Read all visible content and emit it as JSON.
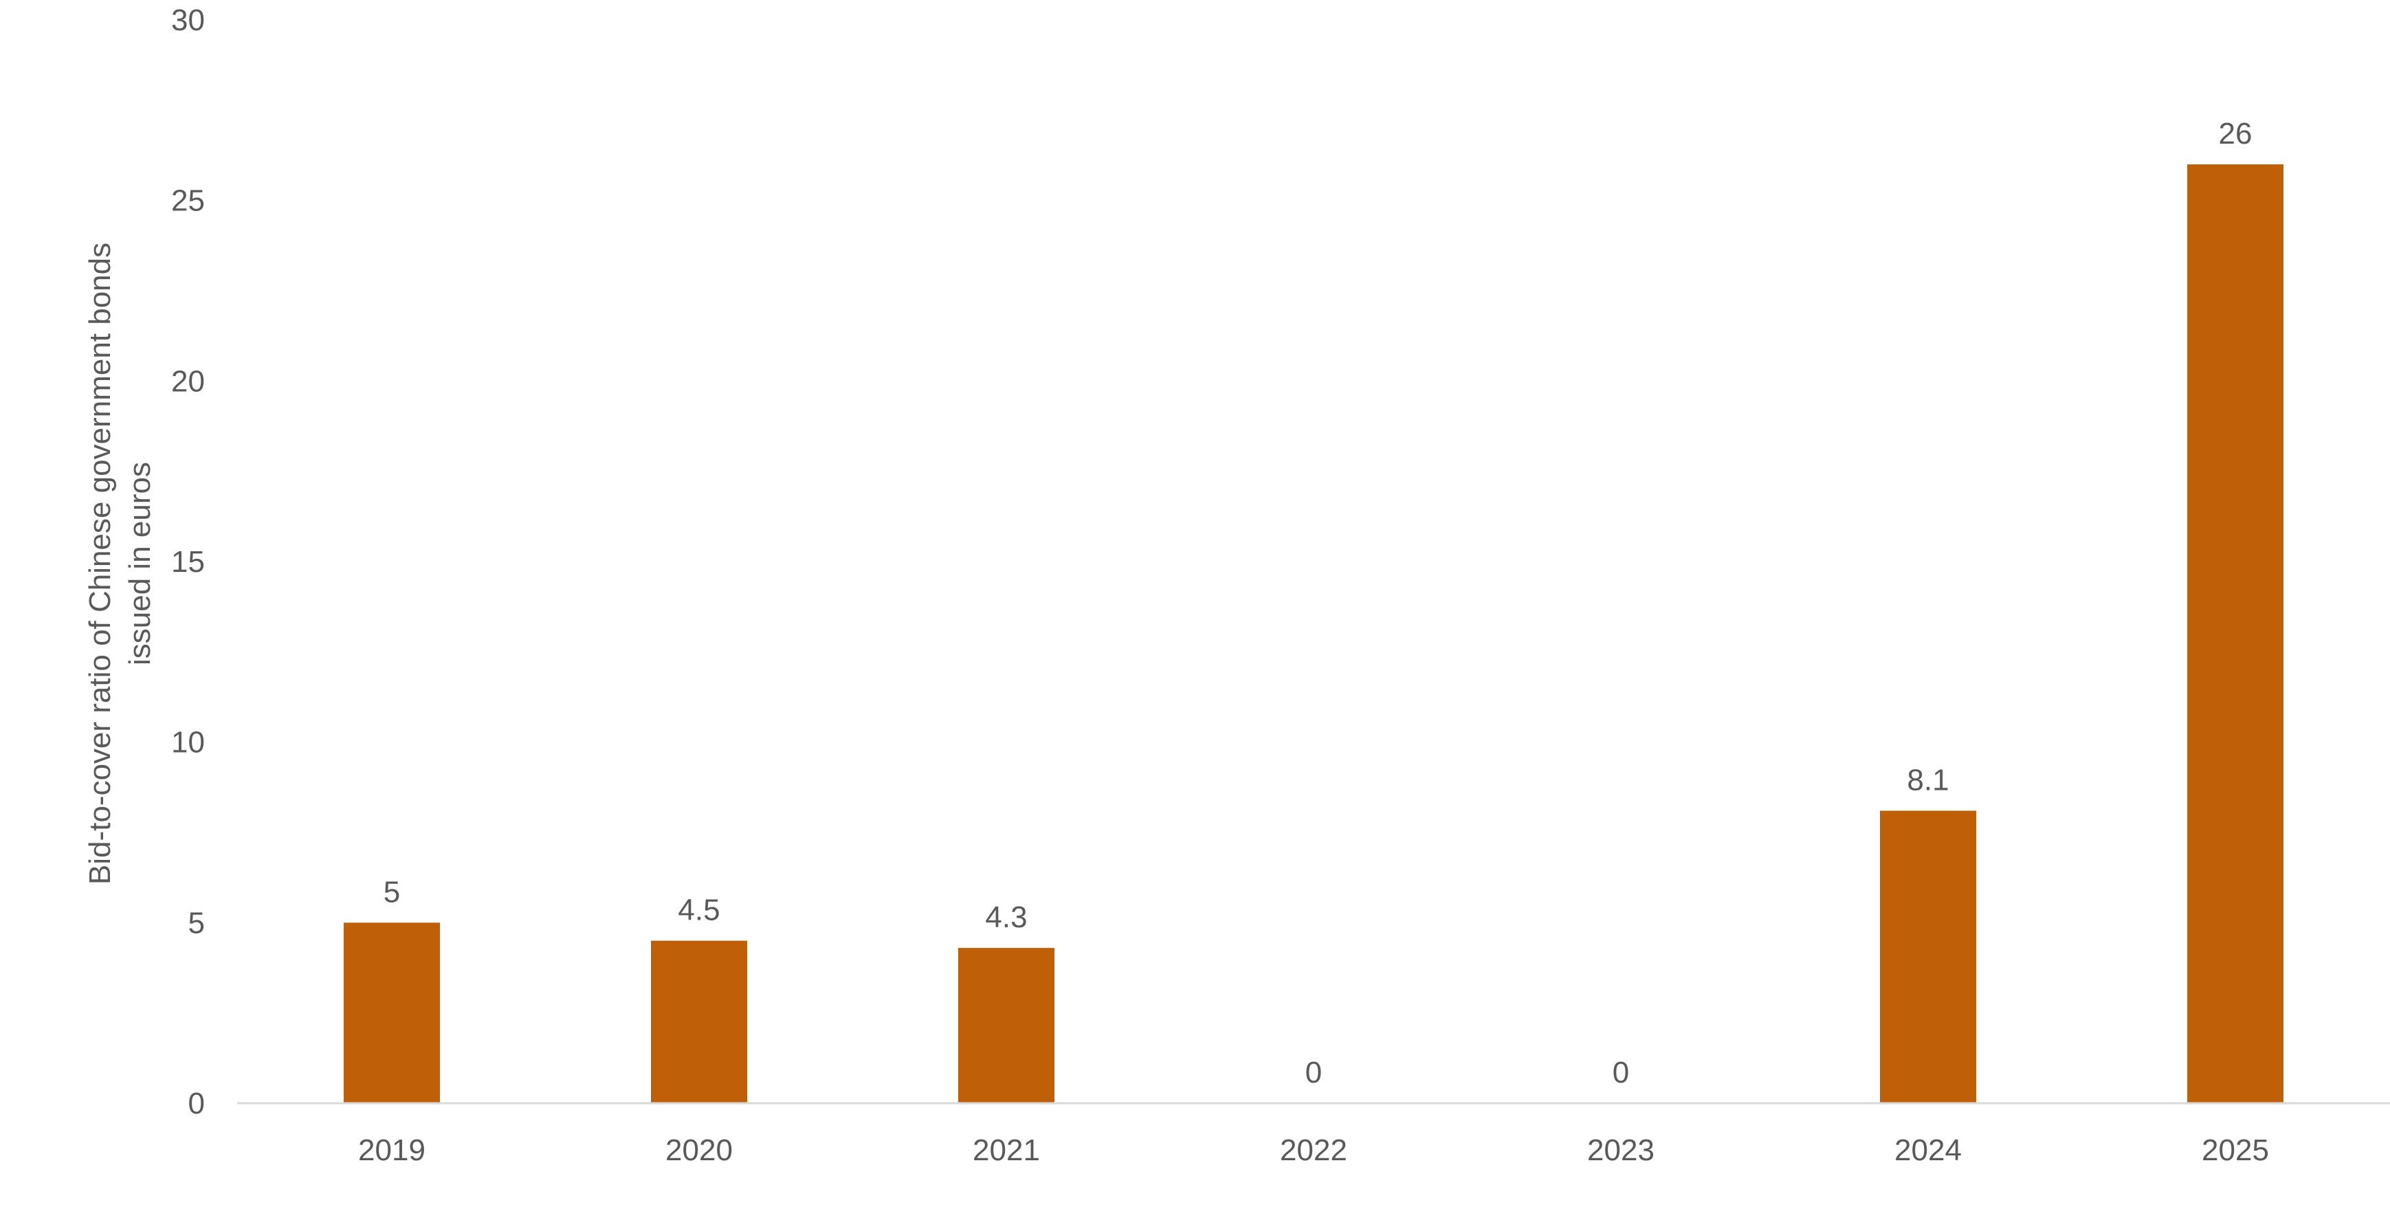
{
  "chart_data": {
    "type": "bar",
    "title": "",
    "xlabel": "",
    "ylabel_lines": [
      "Bid-to-cover ratio of Chinese government bonds",
      "issued in euros"
    ],
    "categories": [
      "2019",
      "2020",
      "2021",
      "2022",
      "2023",
      "2024",
      "2025"
    ],
    "values": [
      5,
      4.5,
      4.3,
      0,
      0,
      8.1,
      26
    ],
    "data_labels": [
      "5",
      "4.5",
      "4.3",
      "0",
      "0",
      "8.1",
      "26"
    ],
    "ylim": [
      0,
      30
    ],
    "yticks": [
      0,
      5,
      10,
      15,
      20,
      25,
      30
    ],
    "ytick_labels": [
      "0",
      "5",
      "10",
      "15",
      "20",
      "25",
      "30"
    ],
    "grid": false,
    "legend": "none",
    "colors": {
      "bar": "#BF5F08",
      "axis_line": "#D9D9D9",
      "text": "#595959"
    }
  }
}
